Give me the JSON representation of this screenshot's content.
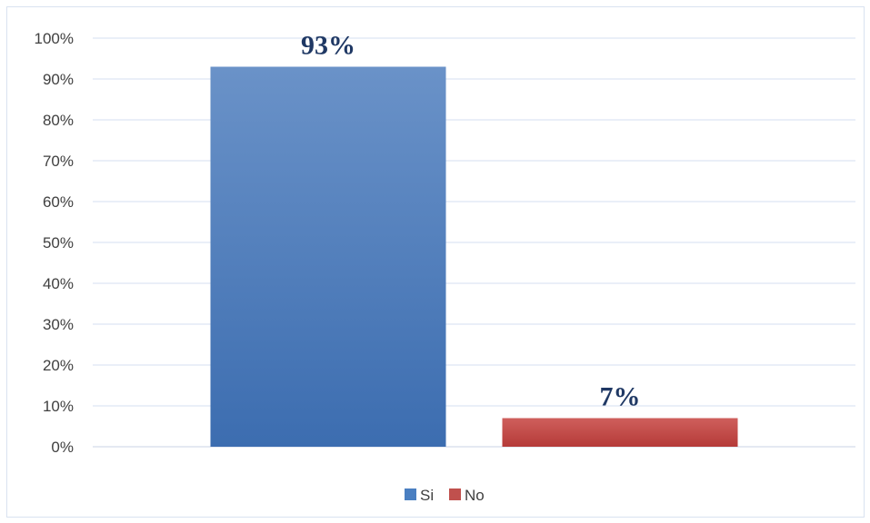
{
  "chart_data": {
    "type": "bar",
    "categories": [
      "Si",
      "No"
    ],
    "values": [
      93,
      7
    ],
    "data_labels": [
      "93%",
      "7%"
    ],
    "colors": [
      "#4a7fc1",
      "#c0504d"
    ],
    "ylim": [
      0,
      100
    ],
    "y_ticks": [
      0,
      10,
      20,
      30,
      40,
      50,
      60,
      70,
      80,
      90,
      100
    ],
    "y_tick_labels": [
      "0%",
      "10%",
      "20%",
      "30%",
      "40%",
      "50%",
      "60%",
      "70%",
      "80%",
      "90%",
      "100%"
    ],
    "grid": true,
    "legend": {
      "placement": "bottom",
      "entries": [
        "Si",
        "No"
      ]
    }
  }
}
